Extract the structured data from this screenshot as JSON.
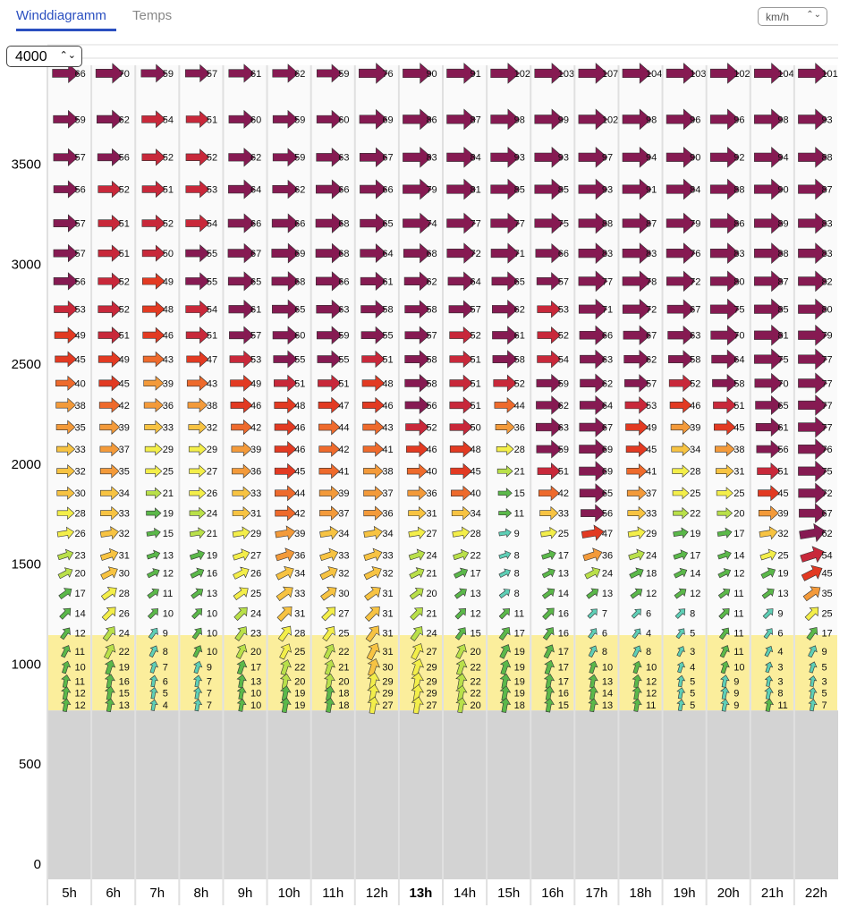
{
  "tabs": [
    "Winddiagramm",
    "Temps"
  ],
  "unit_select": "km/h",
  "altitude_select": "4000",
  "chart_data": {
    "type": "wind-grid",
    "ylim": [
      0,
      4000
    ],
    "yticks": [
      0,
      500,
      1000,
      1500,
      2000,
      2500,
      3000,
      3500
    ],
    "categories": [
      "5h",
      "6h",
      "7h",
      "8h",
      "9h",
      "10h",
      "11h",
      "12h",
      "13h",
      "14h",
      "15h",
      "16h",
      "17h",
      "18h",
      "19h",
      "20h",
      "21h",
      "22h"
    ],
    "levels": [
      3960,
      3730,
      3540,
      3380,
      3210,
      3060,
      2920,
      2780,
      2650,
      2530,
      2410,
      2300,
      2190,
      2080,
      1970,
      1860,
      1760,
      1660,
      1550,
      1460,
      1360,
      1260,
      1160,
      1070,
      990,
      920,
      860,
      800
    ],
    "values": [
      [
        66,
        59,
        57,
        56,
        57,
        57,
        56,
        53,
        49,
        45,
        40,
        38,
        35,
        33,
        32,
        30,
        28,
        26,
        23,
        20,
        17,
        14,
        12,
        11,
        10,
        11,
        12,
        12
      ],
      [
        70,
        62,
        56,
        52,
        51,
        51,
        52,
        52,
        51,
        49,
        45,
        42,
        39,
        37,
        35,
        34,
        33,
        32,
        31,
        30,
        28,
        26,
        24,
        22,
        19,
        16,
        15,
        13
      ],
      [
        59,
        54,
        52,
        51,
        52,
        50,
        49,
        48,
        46,
        43,
        39,
        36,
        33,
        29,
        25,
        21,
        19,
        15,
        13,
        12,
        11,
        10,
        9,
        8,
        7,
        6,
        5,
        4
      ],
      [
        57,
        51,
        52,
        53,
        54,
        55,
        55,
        54,
        51,
        47,
        43,
        38,
        32,
        29,
        27,
        26,
        24,
        21,
        19,
        16,
        13,
        10,
        10,
        10,
        9,
        7,
        7,
        7
      ],
      [
        61,
        60,
        62,
        64,
        66,
        67,
        65,
        61,
        57,
        53,
        49,
        46,
        42,
        39,
        36,
        33,
        31,
        29,
        27,
        26,
        25,
        24,
        23,
        20,
        17,
        13,
        10,
        10
      ],
      [
        62,
        59,
        59,
        62,
        66,
        69,
        68,
        65,
        60,
        55,
        51,
        48,
        46,
        46,
        45,
        44,
        42,
        39,
        36,
        34,
        33,
        31,
        28,
        25,
        22,
        20,
        19,
        19
      ],
      [
        59,
        60,
        63,
        66,
        68,
        68,
        66,
        63,
        59,
        55,
        51,
        47,
        44,
        42,
        41,
        39,
        37,
        34,
        33,
        32,
        30,
        27,
        25,
        22,
        21,
        20,
        18,
        18
      ],
      [
        76,
        69,
        67,
        66,
        65,
        64,
        61,
        58,
        55,
        51,
        48,
        46,
        43,
        41,
        38,
        37,
        36,
        34,
        33,
        32,
        31,
        31,
        31,
        31,
        30,
        29,
        29,
        27
      ],
      [
        90,
        86,
        83,
        79,
        74,
        68,
        62,
        58,
        57,
        58,
        58,
        56,
        52,
        46,
        40,
        36,
        31,
        27,
        24,
        21,
        20,
        21,
        24,
        27,
        29,
        29,
        29,
        27
      ],
      [
        91,
        87,
        84,
        81,
        77,
        72,
        64,
        57,
        52,
        51,
        51,
        51,
        50,
        48,
        45,
        40,
        34,
        28,
        22,
        17,
        13,
        12,
        15,
        20,
        22,
        22,
        22,
        20
      ],
      [
        102,
        98,
        93,
        85,
        77,
        71,
        65,
        62,
        61,
        58,
        52,
        44,
        36,
        28,
        21,
        15,
        11,
        9,
        8,
        8,
        8,
        11,
        17,
        19,
        19,
        19,
        19,
        18
      ],
      [
        103,
        99,
        93,
        85,
        75,
        66,
        57,
        53,
        52,
        54,
        59,
        62,
        63,
        59,
        51,
        42,
        33,
        25,
        17,
        13,
        14,
        16,
        16,
        17,
        17,
        17,
        16,
        15
      ],
      [
        107,
        102,
        97,
        93,
        88,
        83,
        77,
        71,
        66,
        63,
        62,
        64,
        67,
        69,
        69,
        65,
        56,
        47,
        36,
        24,
        13,
        7,
        6,
        8,
        10,
        13,
        14,
        13
      ],
      [
        104,
        98,
        94,
        91,
        87,
        83,
        78,
        72,
        67,
        62,
        57,
        53,
        49,
        45,
        41,
        37,
        33,
        29,
        24,
        18,
        12,
        6,
        4,
        8,
        10,
        12,
        12,
        11
      ],
      [
        103,
        96,
        90,
        84,
        79,
        76,
        72,
        67,
        63,
        58,
        52,
        46,
        39,
        34,
        28,
        25,
        22,
        19,
        17,
        14,
        12,
        8,
        5,
        3,
        4,
        5,
        5,
        5
      ],
      [
        102,
        96,
        92,
        88,
        86,
        83,
        80,
        75,
        70,
        64,
        58,
        51,
        45,
        38,
        31,
        25,
        20,
        17,
        14,
        12,
        11,
        11,
        11,
        11,
        10,
        9,
        9,
        9
      ],
      [
        104,
        98,
        94,
        90,
        89,
        88,
        87,
        85,
        81,
        75,
        70,
        65,
        61,
        56,
        51,
        45,
        39,
        32,
        25,
        19,
        13,
        9,
        6,
        4,
        3,
        3,
        8,
        11
      ],
      [
        101,
        93,
        88,
        87,
        83,
        83,
        82,
        80,
        79,
        77,
        77,
        77,
        77,
        76,
        75,
        72,
        67,
        62,
        54,
        45,
        35,
        25,
        17,
        9,
        5,
        3,
        5,
        7
      ]
    ]
  }
}
